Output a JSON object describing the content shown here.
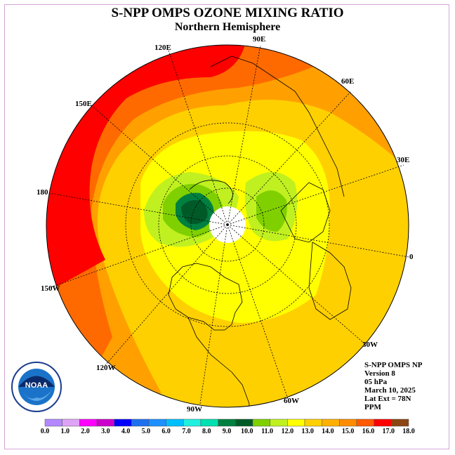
{
  "title": "S-NPP OMPS OZONE MIXING RATIO",
  "subtitle": "Northern Hemisphere",
  "longitude_labels": {
    "lon_120e": "120E",
    "lon_90e": "90E",
    "lon_60e": "60E",
    "lon_150e": "150E",
    "lon_30e": "30E",
    "lon_180": "180",
    "lon_0": "0",
    "lon_150w": "150W",
    "lon_30w": "30W",
    "lon_120w": "120W",
    "lon_60w": "60W",
    "lon_90w": "90W"
  },
  "info": {
    "product": "S-NPP OMPS NP",
    "version": "Version 8",
    "level": "05 hPa",
    "date": "March 10, 2025",
    "lat_ext": "Lat Ext = 78N",
    "units": "PPM"
  },
  "logo": {
    "text": "NOAA",
    "ring_text": "NATIONAL OCEANIC AND ATMOSPHERIC ADMINISTRATION · U.S. DEPARTMENT OF COMMERCE"
  },
  "colorbar": {
    "colors": [
      "#b388ff",
      "#dfa3f5",
      "#ff00ff",
      "#cc00cc",
      "#0000ff",
      "#1f70f0",
      "#1e90ff",
      "#00bfff",
      "#20f0e0",
      "#00e0b0",
      "#008040",
      "#005a28",
      "#80d000",
      "#c0f020",
      "#ffff00",
      "#ffd000",
      "#ffb000",
      "#ff8c00",
      "#ff5a00",
      "#ff0000",
      "#8b4513"
    ],
    "ticks": [
      "0.0",
      "1.0",
      "2.0",
      "3.0",
      "4.0",
      "5.0",
      "6.0",
      "7.0",
      "8.0",
      "9.0",
      "10.0",
      "11.0",
      "12.0",
      "13.0",
      "14.0",
      "15.0",
      "16.0",
      "17.0",
      "18.0"
    ]
  }
}
